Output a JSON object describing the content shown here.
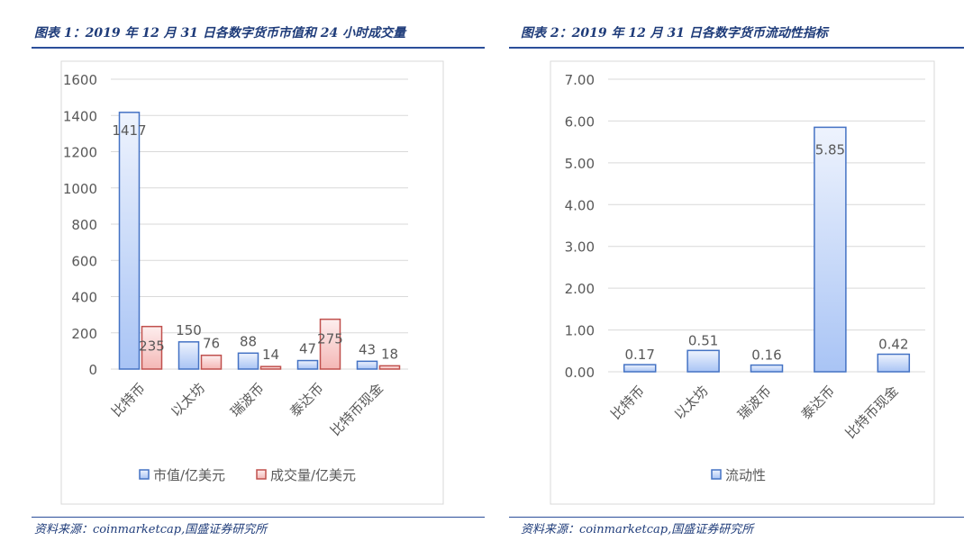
{
  "titles": [
    "图表 1：2019 年 12 月 31 日各数字货币市值和 24 小时成交量",
    "图表 2：2019 年 12 月 31 日各数字货币流动性指标"
  ],
  "sources": [
    "资料来源：coinmarketcap,国盛证券研究所",
    "资料来源：coinmarketcap,国盛证券研究所"
  ],
  "colors": {
    "blue": "#4472c4",
    "blue_fill": "#a9c4f5",
    "red": "#c0504d",
    "red_fill": "#f4b8b6",
    "accent": "#2b4f9a"
  },
  "chart_data": [
    {
      "type": "bar",
      "categories": [
        "比特币",
        "以太坊",
        "瑞波币",
        "泰达币",
        "比特币现金"
      ],
      "series": [
        {
          "name": "市值/亿美元",
          "values": [
            1417,
            150,
            88,
            47,
            43
          ]
        },
        {
          "name": "成交量/亿美元",
          "values": [
            235,
            76,
            14,
            275,
            18
          ]
        }
      ],
      "ylim": [
        0,
        1600
      ],
      "yticks": [
        "0",
        "200",
        "400",
        "600",
        "800",
        "1000",
        "1200",
        "1400",
        "1600"
      ],
      "grid": true,
      "legend": "bottom"
    },
    {
      "type": "bar",
      "categories": [
        "比特币",
        "以太坊",
        "瑞波币",
        "泰达币",
        "比特币现金"
      ],
      "series": [
        {
          "name": "流动性",
          "values": [
            0.17,
            0.51,
            0.16,
            5.85,
            0.42
          ]
        }
      ],
      "ylim": [
        0,
        7
      ],
      "yticks": [
        "0.00",
        "1.00",
        "2.00",
        "3.00",
        "4.00",
        "5.00",
        "6.00",
        "7.00"
      ],
      "grid": true,
      "legend": "bottom"
    }
  ]
}
